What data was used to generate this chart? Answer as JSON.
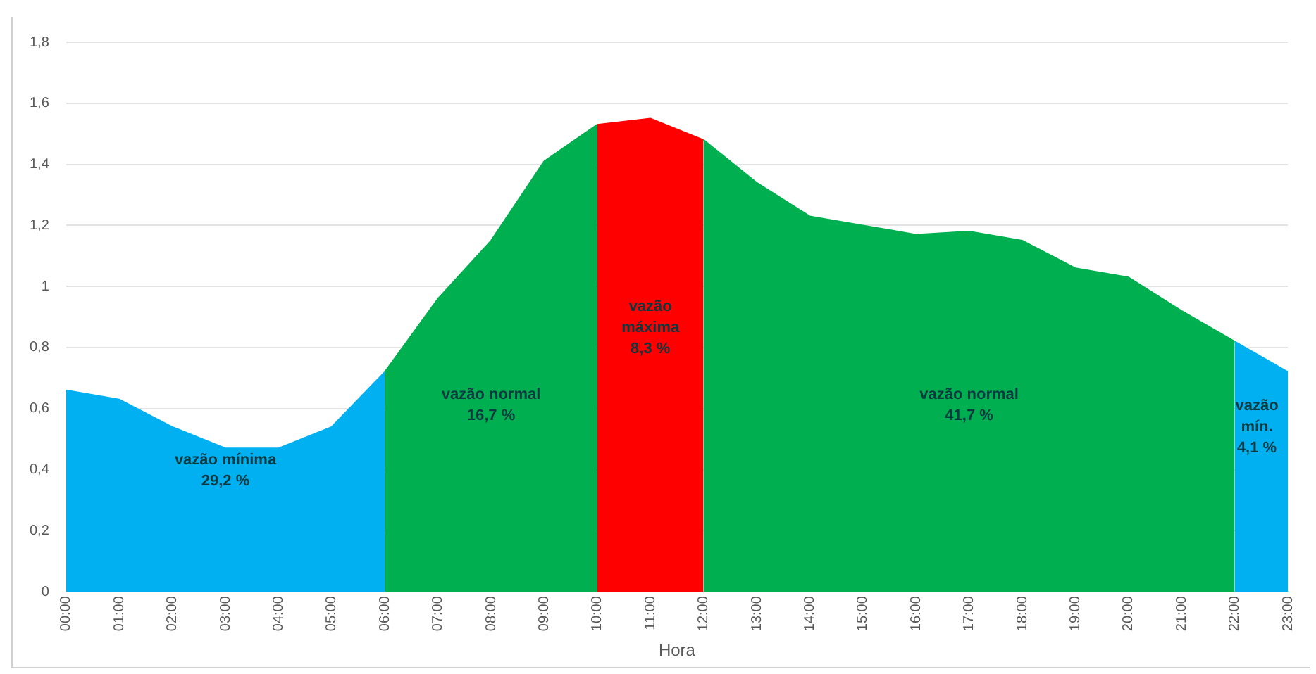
{
  "chart_data": {
    "type": "area",
    "xlabel": "Hora",
    "categories": [
      "00:00",
      "01:00",
      "02:00",
      "03:00",
      "04:00",
      "05:00",
      "06:00",
      "07:00",
      "08:00",
      "09:00",
      "10:00",
      "11:00",
      "12:00",
      "13:00",
      "14:00",
      "15:00",
      "16:00",
      "17:00",
      "18:00",
      "19:00",
      "20:00",
      "21:00",
      "22:00",
      "23:00"
    ],
    "series": [
      {
        "color": "#00b0f0",
        "values": [
          0.66,
          0.63,
          0.54,
          0.47,
          0.47,
          0.54,
          0.72,
          null,
          null,
          null,
          null,
          null,
          null,
          null,
          null,
          null,
          null,
          null,
          null,
          null,
          null,
          null,
          0.82,
          0.72
        ]
      },
      {
        "color": "#00b050",
        "values": [
          null,
          null,
          null,
          null,
          null,
          null,
          0.72,
          0.96,
          1.15,
          1.41,
          1.53,
          null,
          1.48,
          1.34,
          1.23,
          1.2,
          1.17,
          1.18,
          1.15,
          1.06,
          1.03,
          0.92,
          0.82,
          null
        ]
      },
      {
        "color": "#ff0000",
        "values": [
          null,
          null,
          null,
          null,
          null,
          null,
          null,
          null,
          null,
          null,
          1.53,
          1.55,
          1.48,
          null,
          null,
          null,
          null,
          null,
          null,
          null,
          null,
          null,
          null,
          null
        ]
      }
    ],
    "ylim": [
      0,
      1.8
    ],
    "yticks": [
      0,
      {
        "value": 0.2,
        "label": "0,2"
      },
      {
        "value": 0.4,
        "label": "0,4"
      },
      {
        "value": 0.6,
        "label": "0,6"
      },
      {
        "value": 0.8,
        "label": "0,8"
      },
      1,
      {
        "value": 1.2,
        "label": "1,2"
      },
      {
        "value": 1.4,
        "label": "1,4"
      },
      {
        "value": 1.6,
        "label": "1,6"
      },
      {
        "value": 1.8,
        "label": "1,8"
      }
    ],
    "grid": "y",
    "marker": "none",
    "annotations": [
      "vazão mínima\n29,2 %",
      "vazão normal\n16,7 %",
      "vazão\nmáxima\n8,3 %",
      "vazão normal\n41,7 %",
      "vazão\nmín.\n4,1 %"
    ]
  }
}
